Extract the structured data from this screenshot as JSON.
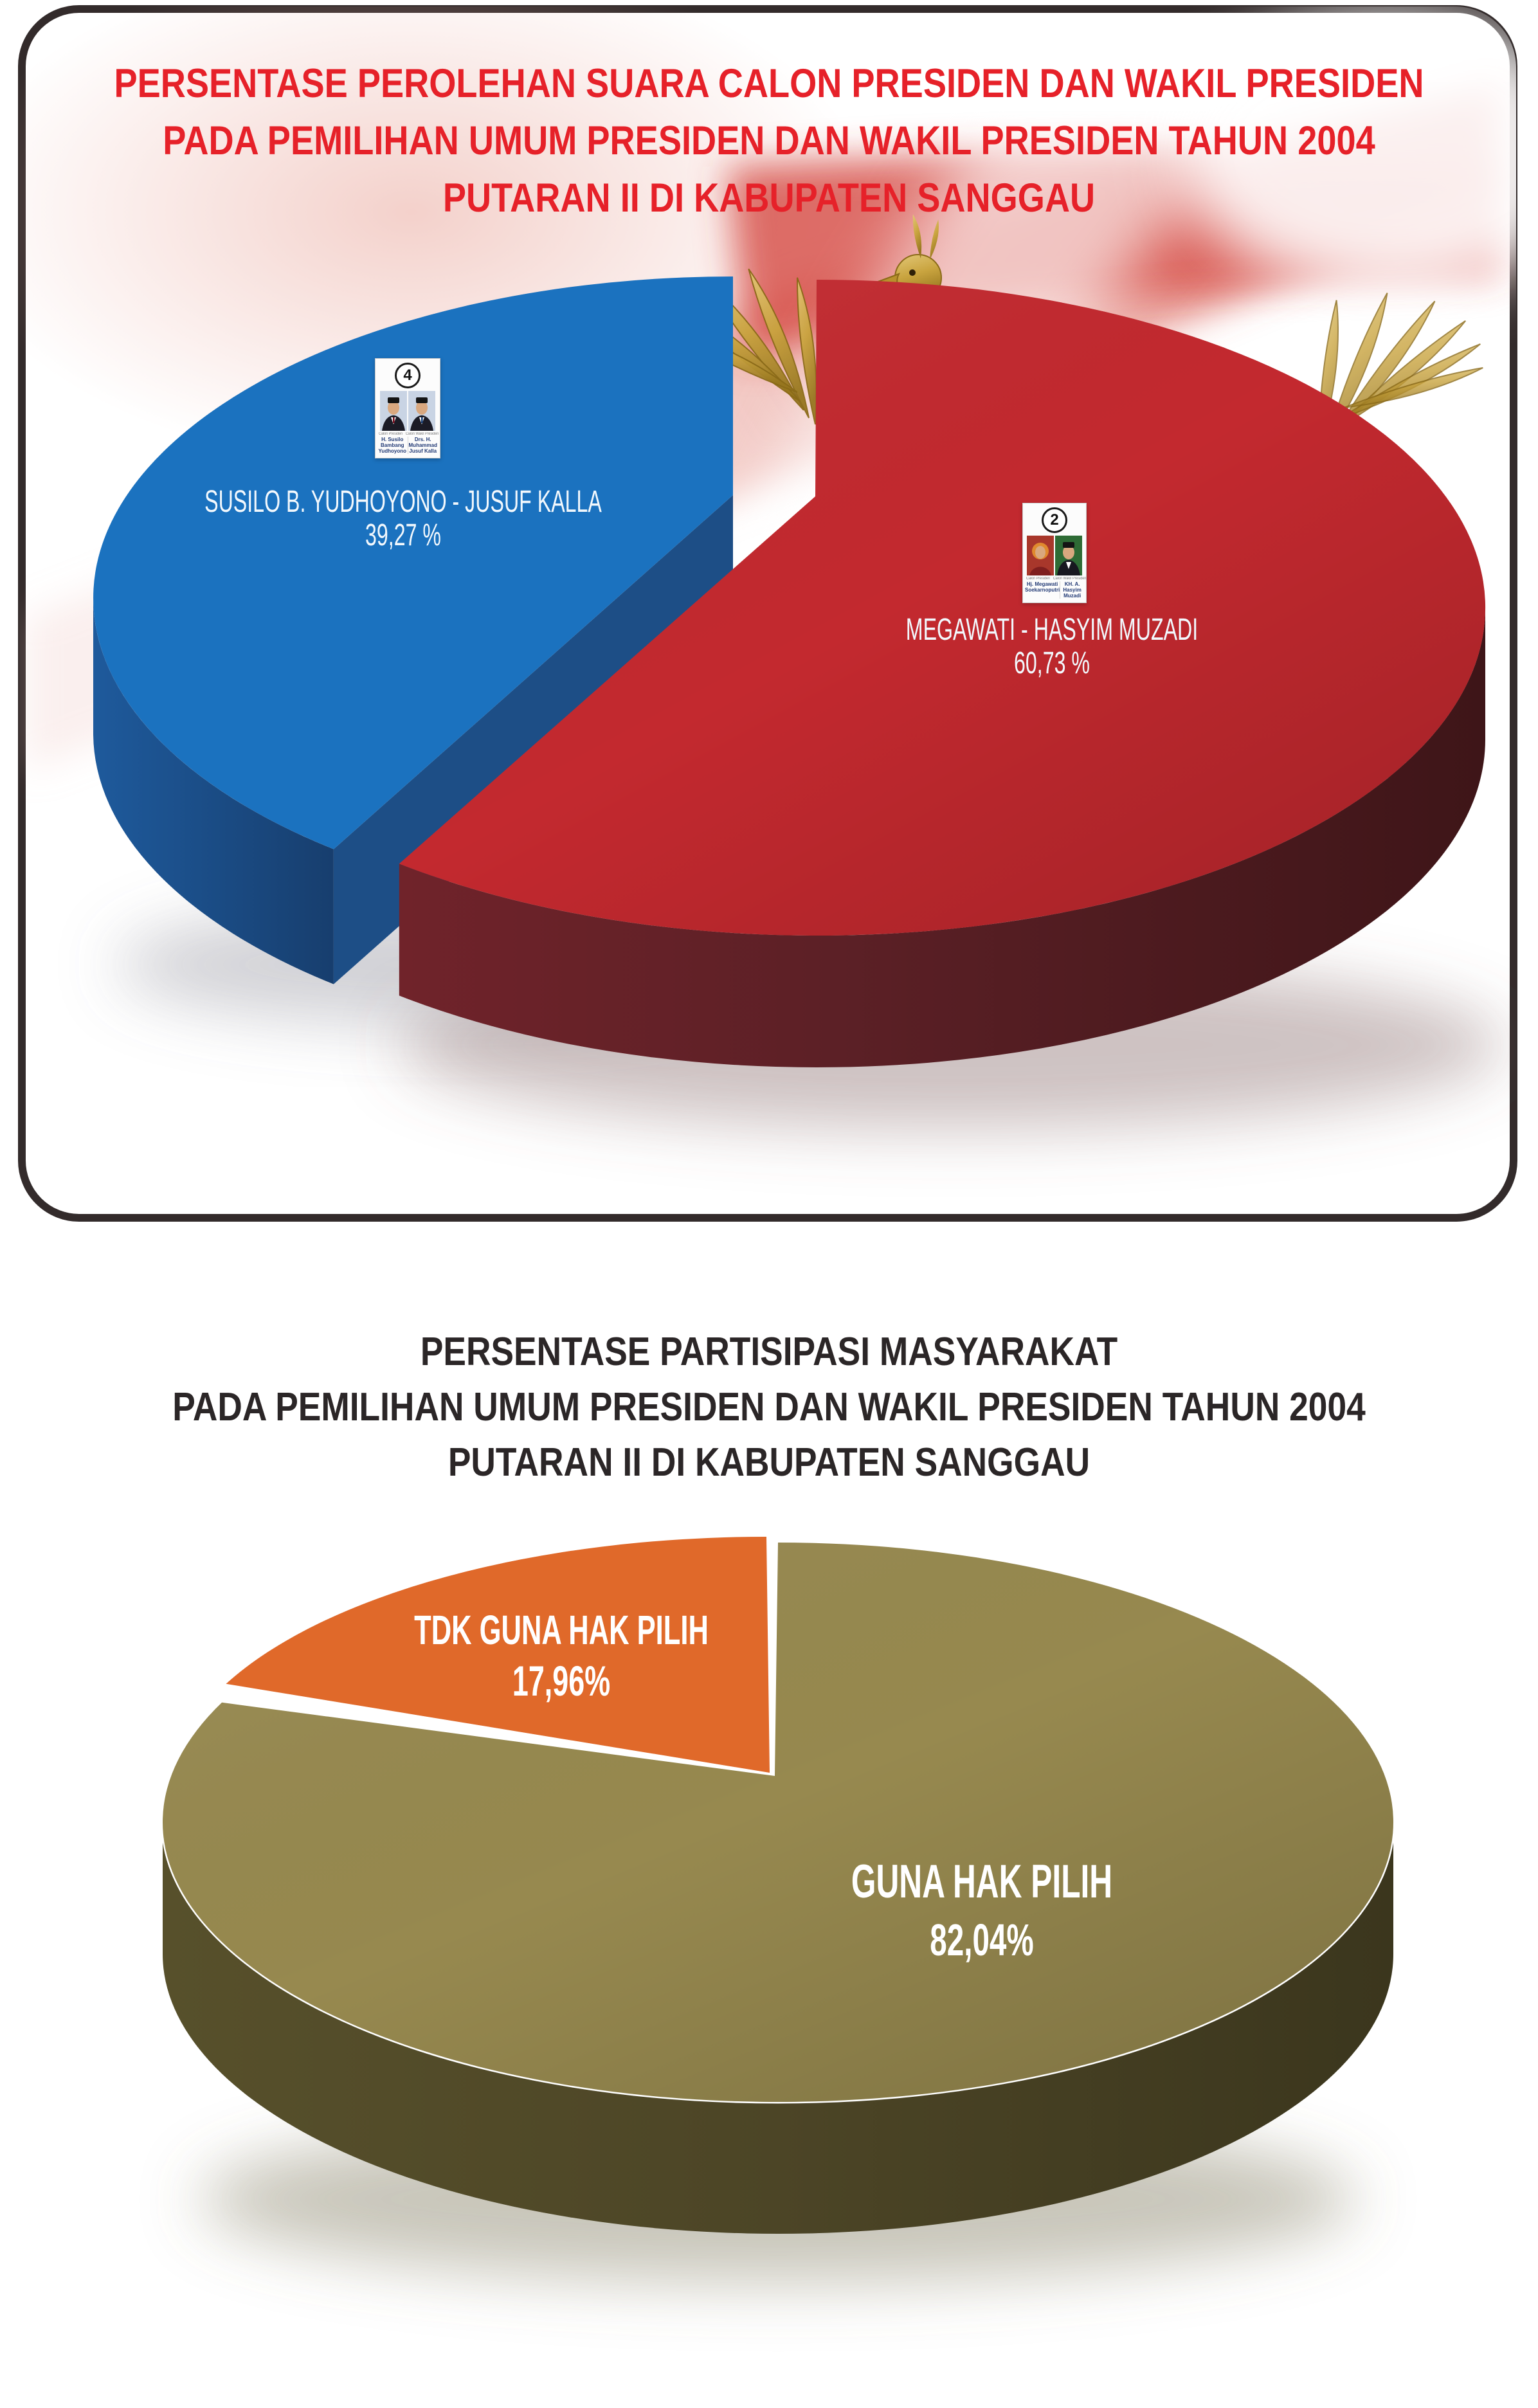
{
  "panel1": {
    "border_color": "#332B2B",
    "title": {
      "color": "#E62129",
      "lines": [
        "PERSENTASE PEROLEHAN SUARA CALON PRESIDEN DAN WAKIL PRESIDEN",
        "PADA PEMILIHAN UMUM PRESIDEN DAN WAKIL PRESIDEN TAHUN 2004",
        "PUTARAN II DI KABUPATEN SANGGAU"
      ]
    },
    "slice_labels": {
      "sby": {
        "line1": "SUSILO B. YUDHOYONO - JUSUF KALLA",
        "line2": "39,27 %"
      },
      "mega": {
        "line1": "MEGAWATI - HASYIM MUZADI",
        "line2": "60,73 %"
      }
    },
    "cards": {
      "sby": {
        "number": "4",
        "caption_left": "Calon Presiden",
        "caption_right": "Calon Wakil Presiden",
        "name_left": [
          "H. Susilo Bambang",
          "Yudhoyono"
        ],
        "name_right": [
          "Drs. H. Muhammad",
          "Jusuf Kalla"
        ]
      },
      "mega": {
        "number": "2",
        "caption_left": "Calon Presiden",
        "caption_right": "Calon Wakil Presiden",
        "name_left": [
          "Hj. Megawati",
          "Soekarnoputri"
        ],
        "name_right": [
          "KH. A. Hasyim",
          "Muzadi"
        ]
      }
    }
  },
  "section2": {
    "title": {
      "color": "#2B2627",
      "lines": [
        "PERSENTASE PARTISIPASI MASYARAKAT",
        "PADA PEMILIHAN UMUM PRESIDEN DAN WAKIL PRESIDEN TAHUN 2004",
        "PUTARAN II DI KABUPATEN SANGGAU"
      ]
    },
    "slice_labels": {
      "tdk": {
        "line1": "TDK GUNA HAK PILIH",
        "line2": "17,96%"
      },
      "guna": {
        "line1": "GUNA HAK PILIH",
        "line2": "82,04%"
      }
    }
  },
  "decor": {
    "garuda_gold": "#C9A43F",
    "flag_red": "#D6453F",
    "panel_background": "#FFFFFF"
  },
  "chart_data": [
    {
      "type": "pie",
      "style": "3d-exploded",
      "title": "PERSENTASE PEROLEHAN SUARA CALON PRESIDEN DAN WAKIL PRESIDEN PADA PEMILIHAN UMUM PRESIDEN DAN WAKIL PRESIDEN TAHUN 2004 PUTARAN II DI KABUPATEN SANGGAU",
      "legend": false,
      "labels_position": "on-slice",
      "slices": [
        {
          "label": "SUSILO B. YUDHOYONO - JUSUF KALLA",
          "value": 39.27,
          "display": "39,27 %",
          "color": "#1B72BF",
          "side_color": "#1D4E86"
        },
        {
          "label": "MEGAWATI - HASYIM MUZADI",
          "value": 60.73,
          "display": "60,73 %",
          "color": "#C3292F",
          "side_color": "#6B2226"
        }
      ]
    },
    {
      "type": "pie",
      "style": "3d-exploded",
      "title": "PERSENTASE PARTISIPASI MASYARAKAT PADA PEMILIHAN UMUM PRESIDEN DAN WAKIL PRESIDEN TAHUN 2004 PUTARAN II DI KABUPATEN SANGGAU",
      "legend": false,
      "labels_position": "on-slice",
      "slices": [
        {
          "label": "GUNA HAK PILIH",
          "value": 82.04,
          "display": "82,04%",
          "color": "#97894F",
          "side_color": "#554E2A"
        },
        {
          "label": "TDK GUNA HAK PILIH",
          "value": 17.96,
          "display": "17,96%",
          "color": "#E0692A",
          "side_color": "#B34F1B"
        }
      ]
    }
  ]
}
